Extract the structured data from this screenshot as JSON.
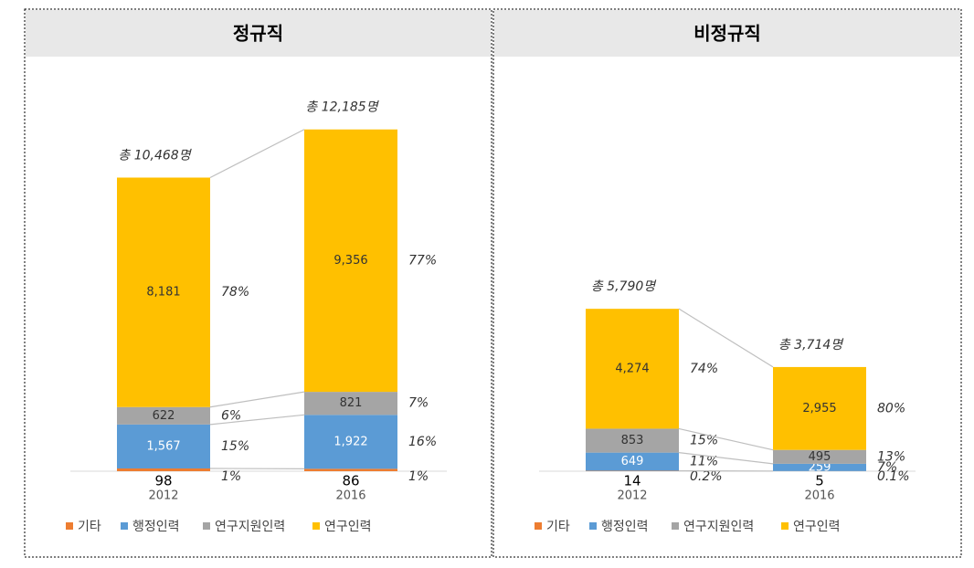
{
  "chart_data": [
    {
      "type": "bar",
      "stacked": true,
      "title": "정규직",
      "categories": [
        "2012",
        "2016"
      ],
      "total_labels": [
        "총 10,468명",
        "총 12,185명"
      ],
      "ylim": [
        0,
        14000
      ],
      "series": [
        {
          "name": "기타",
          "color": "#ed7d31",
          "values": [
            98,
            86
          ],
          "value_labels": [
            "98",
            "86"
          ],
          "share_labels": [
            "1%",
            "1%"
          ]
        },
        {
          "name": "행정인력",
          "color": "#5b9bd5",
          "values": [
            1567,
            1922
          ],
          "value_labels": [
            "1,567",
            "1,922"
          ],
          "share_labels": [
            "15%",
            "16%"
          ]
        },
        {
          "name": "연구지원인력",
          "color": "#a5a5a5",
          "values": [
            622,
            821
          ],
          "value_labels": [
            "622",
            "821"
          ],
          "share_labels": [
            "6%",
            "7%"
          ]
        },
        {
          "name": "연구인력",
          "color": "#ffc000",
          "values": [
            8181,
            9356
          ],
          "value_labels": [
            "8,181",
            "9,356"
          ],
          "share_labels": [
            "78%",
            "77%"
          ]
        }
      ]
    },
    {
      "type": "bar",
      "stacked": true,
      "title": "비정규직",
      "categories": [
        "2012",
        "2016"
      ],
      "total_labels": [
        "총 5,790명",
        "총 3,714명"
      ],
      "ylim": [
        0,
        14000
      ],
      "series": [
        {
          "name": "기타",
          "color": "#ed7d31",
          "values": [
            14,
            5
          ],
          "value_labels": [
            "14",
            "5"
          ],
          "share_labels": [
            "0.2%",
            "0.1%"
          ]
        },
        {
          "name": "행정인력",
          "color": "#5b9bd5",
          "values": [
            649,
            259
          ],
          "value_labels": [
            "649",
            "259"
          ],
          "share_labels": [
            "11%",
            "7%"
          ]
        },
        {
          "name": "연구지원인력",
          "color": "#a5a5a5",
          "values": [
            853,
            495
          ],
          "value_labels": [
            "853",
            "495"
          ],
          "share_labels": [
            "15%",
            "13%"
          ]
        },
        {
          "name": "연구인력",
          "color": "#ffc000",
          "values": [
            4274,
            2955
          ],
          "value_labels": [
            "4,274",
            "2,955"
          ],
          "share_labels": [
            "74%",
            "80%"
          ]
        }
      ]
    }
  ]
}
